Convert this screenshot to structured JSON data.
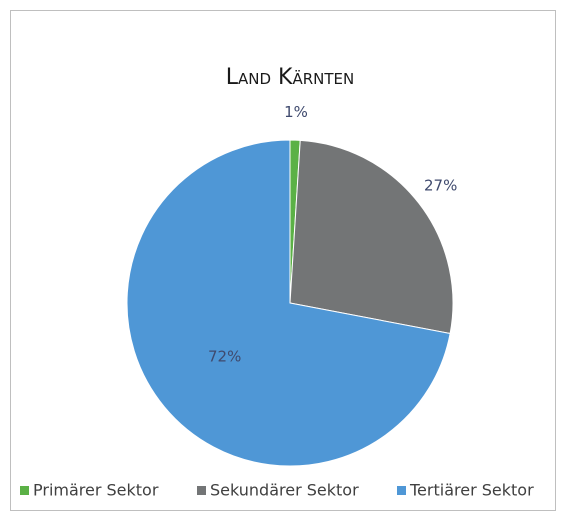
{
  "chart_data": {
    "type": "pie",
    "title": "Land Kärnten",
    "categories": [
      "Primärer Sektor",
      "Sekundärer Sektor",
      "Tertiärer Sektor"
    ],
    "values": [
      1,
      27,
      72
    ],
    "value_labels": [
      "1%",
      "27%",
      "72%"
    ],
    "colors": [
      "#5bb146",
      "#737576",
      "#4f97d6"
    ],
    "legend": "bottom"
  }
}
